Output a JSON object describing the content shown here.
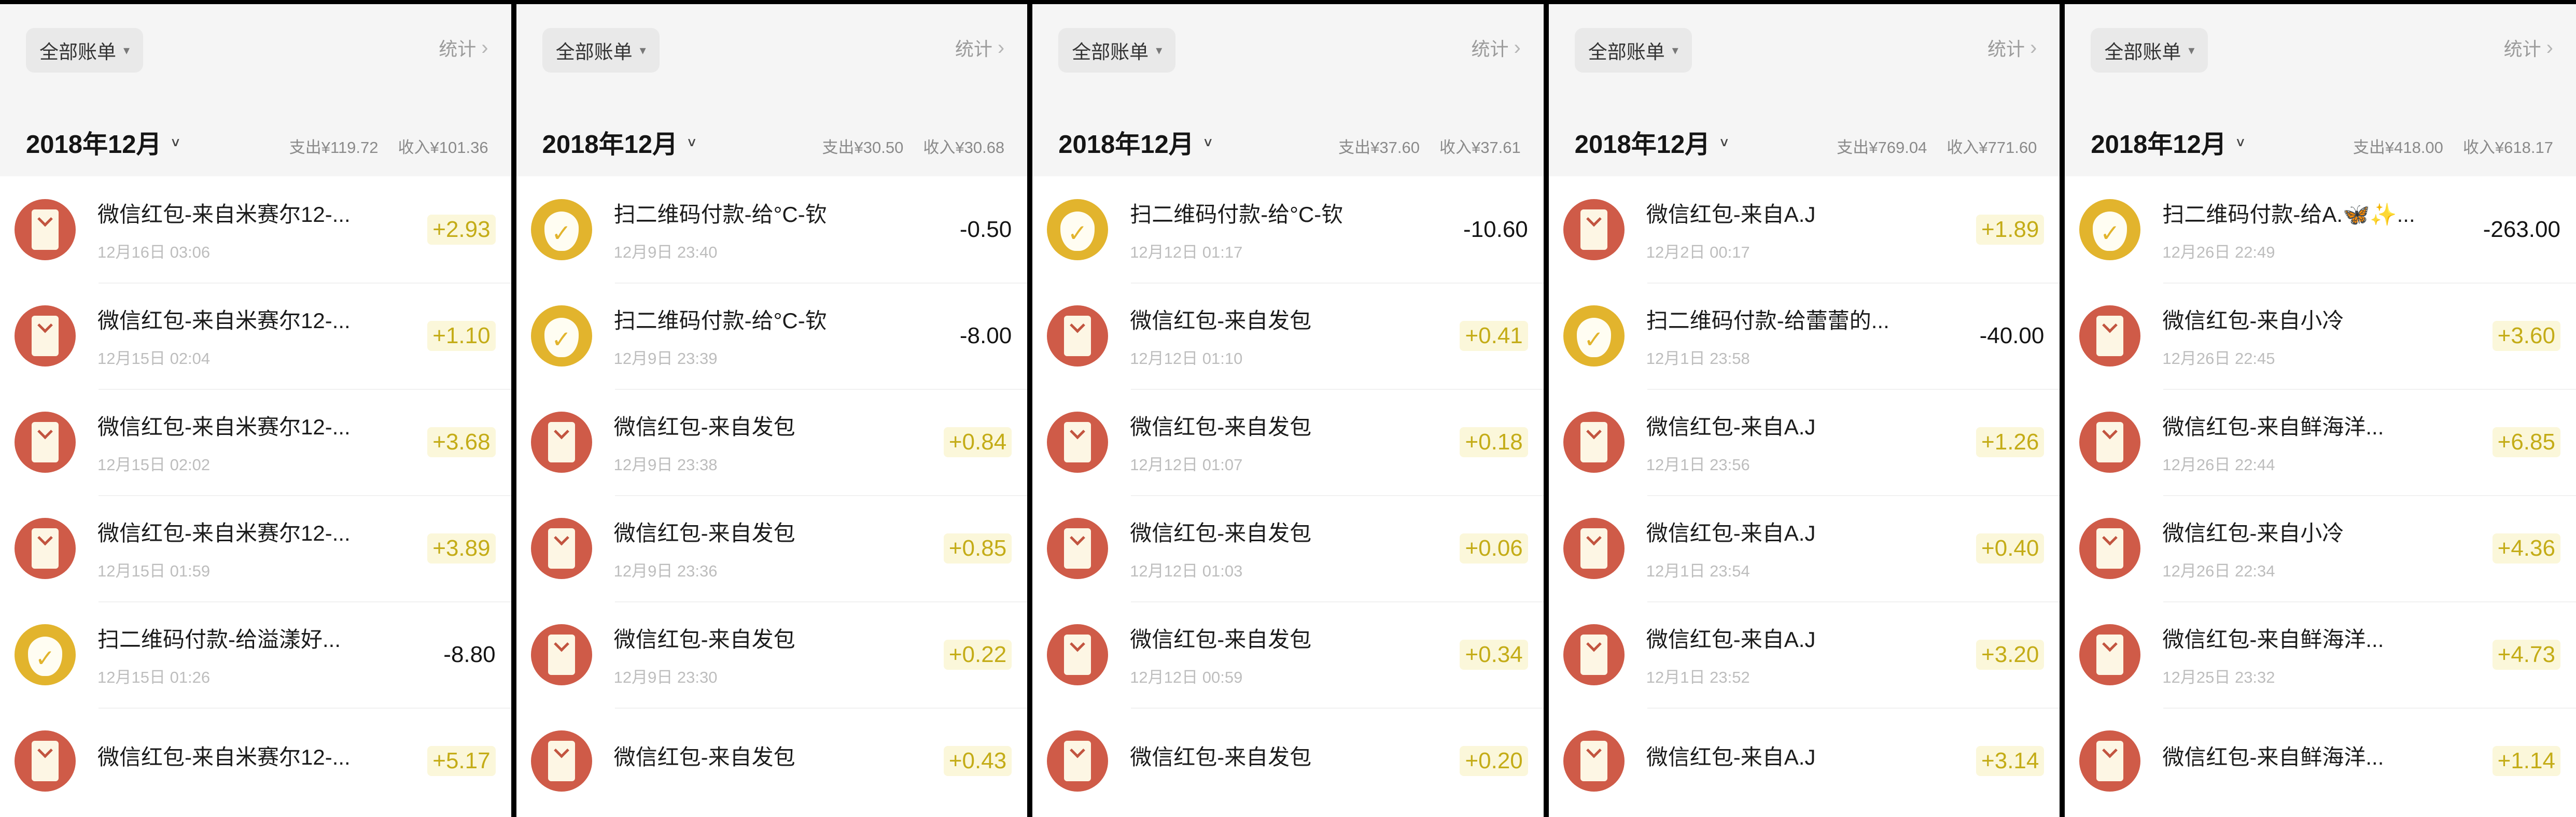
{
  "app": {
    "filter_label": "全部账单",
    "filter_caret": "▾",
    "stats_label": "统计",
    "stats_chevron": "›",
    "month_caret": "∨"
  },
  "panels": [
    {
      "month": "2018年12月",
      "expense_summary": "支出¥119.72",
      "income_summary": "收入¥101.36",
      "transactions": [
        {
          "icon": "red-envelope-icon",
          "title": "微信红包-来自米赛尔12-...",
          "date": "12月16日 03:06",
          "amount": "+2.93"
        },
        {
          "icon": "red-envelope-icon",
          "title": "微信红包-来自米赛尔12-...",
          "date": "12月15日 02:04",
          "amount": "+1.10"
        },
        {
          "icon": "red-envelope-icon",
          "title": "微信红包-来自米赛尔12-...",
          "date": "12月15日 02:02",
          "amount": "+3.68"
        },
        {
          "icon": "red-envelope-icon",
          "title": "微信红包-来自米赛尔12-...",
          "date": "12月15日 01:59",
          "amount": "+3.89"
        },
        {
          "icon": "money-bag-icon",
          "title": "扫二维码付款-给溢漾好...",
          "date": "12月15日 01:26",
          "amount": "-8.80"
        },
        {
          "icon": "red-envelope-icon",
          "title": "微信红包-来自米赛尔12-...",
          "date": "",
          "amount": "+5.17"
        }
      ]
    },
    {
      "month": "2018年12月",
      "expense_summary": "支出¥30.50",
      "income_summary": "收入¥30.68",
      "transactions": [
        {
          "icon": "money-bag-icon",
          "title": "扫二维码付款-给°C-钦",
          "date": "12月9日 23:40",
          "amount": "-0.50"
        },
        {
          "icon": "money-bag-icon",
          "title": "扫二维码付款-给°C-钦",
          "date": "12月9日 23:39",
          "amount": "-8.00"
        },
        {
          "icon": "red-envelope-icon",
          "title": "微信红包-来自发包",
          "date": "12月9日 23:38",
          "amount": "+0.84"
        },
        {
          "icon": "red-envelope-icon",
          "title": "微信红包-来自发包",
          "date": "12月9日 23:36",
          "amount": "+0.85"
        },
        {
          "icon": "red-envelope-icon",
          "title": "微信红包-来自发包",
          "date": "12月9日 23:30",
          "amount": "+0.22"
        },
        {
          "icon": "red-envelope-icon",
          "title": "微信红包-来自发包",
          "date": "",
          "amount": "+0.43"
        }
      ]
    },
    {
      "month": "2018年12月",
      "expense_summary": "支出¥37.60",
      "income_summary": "收入¥37.61",
      "transactions": [
        {
          "icon": "money-bag-icon",
          "title": "扫二维码付款-给°C-钦",
          "date": "12月12日 01:17",
          "amount": "-10.60"
        },
        {
          "icon": "red-envelope-icon",
          "title": "微信红包-来自发包",
          "date": "12月12日 01:10",
          "amount": "+0.41"
        },
        {
          "icon": "red-envelope-icon",
          "title": "微信红包-来自发包",
          "date": "12月12日 01:07",
          "amount": "+0.18"
        },
        {
          "icon": "red-envelope-icon",
          "title": "微信红包-来自发包",
          "date": "12月12日 01:03",
          "amount": "+0.06"
        },
        {
          "icon": "red-envelope-icon",
          "title": "微信红包-来自发包",
          "date": "12月12日 00:59",
          "amount": "+0.34"
        },
        {
          "icon": "red-envelope-icon",
          "title": "微信红包-来自发包",
          "date": "",
          "amount": "+0.20"
        }
      ]
    },
    {
      "month": "2018年12月",
      "expense_summary": "支出¥769.04",
      "income_summary": "收入¥771.60",
      "transactions": [
        {
          "icon": "red-envelope-icon",
          "title": "微信红包-来自A.J",
          "date": "12月2日 00:17",
          "amount": "+1.89"
        },
        {
          "icon": "money-bag-icon",
          "title": "扫二维码付款-给蕾蕾的...",
          "date": "12月1日 23:58",
          "amount": "-40.00"
        },
        {
          "icon": "red-envelope-icon",
          "title": "微信红包-来自A.J",
          "date": "12月1日 23:56",
          "amount": "+1.26"
        },
        {
          "icon": "red-envelope-icon",
          "title": "微信红包-来自A.J",
          "date": "12月1日 23:54",
          "amount": "+0.40"
        },
        {
          "icon": "red-envelope-icon",
          "title": "微信红包-来自A.J",
          "date": "12月1日 23:52",
          "amount": "+3.20"
        },
        {
          "icon": "red-envelope-icon",
          "title": "微信红包-来自A.J",
          "date": "",
          "amount": "+3.14"
        }
      ]
    },
    {
      "month": "2018年12月",
      "expense_summary": "支出¥418.00",
      "income_summary": "收入¥618.17",
      "transactions": [
        {
          "icon": "money-bag-icon",
          "title": "扫二维码付款-给A.🦋✨...",
          "date": "12月26日 22:49",
          "amount": "-263.00"
        },
        {
          "icon": "red-envelope-icon",
          "title": "微信红包-来自小冷",
          "date": "12月26日 22:45",
          "amount": "+3.60"
        },
        {
          "icon": "red-envelope-icon",
          "title": "微信红包-来自鲜海洋...",
          "date": "12月26日 22:44",
          "amount": "+6.85"
        },
        {
          "icon": "red-envelope-icon",
          "title": "微信红包-来自小冷",
          "date": "12月26日 22:34",
          "amount": "+4.36"
        },
        {
          "icon": "red-envelope-icon",
          "title": "微信红包-来自鲜海洋...",
          "date": "12月25日 23:32",
          "amount": "+4.73"
        },
        {
          "icon": "red-envelope-icon",
          "title": "微信红包-来自鲜海洋...",
          "date": "",
          "amount": "+1.14"
        }
      ]
    }
  ]
}
